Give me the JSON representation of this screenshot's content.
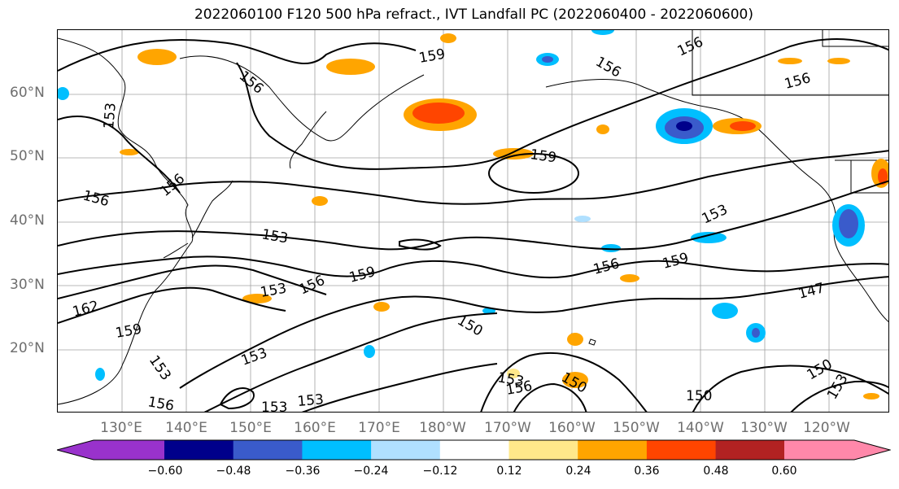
{
  "title": "2022060100 F120 500 hPa refract., IVT Landfall PC (2022060400 - 2022060600)",
  "lat_labels": [
    "60°N",
    "50°N",
    "40°N",
    "30°N",
    "20°N"
  ],
  "lon_labels": [
    "130°E",
    "140°E",
    "150°E",
    "160°E",
    "170°E",
    "180°W",
    "170°W",
    "160°W",
    "150°W",
    "140°W",
    "130°W",
    "120°W"
  ],
  "contour_labels": [
    "156",
    "159",
    "156",
    "156",
    "153",
    "156",
    "156",
    "159",
    "159",
    "153",
    "156",
    "153",
    "156",
    "159",
    "162",
    "159",
    "153",
    "153",
    "153",
    "156",
    "150",
    "153",
    "156",
    "150",
    "150",
    "153",
    "153",
    "150",
    "147",
    "156",
    "153"
  ],
  "colorbar": {
    "ticks": [
      "−0.60",
      "−0.48",
      "−0.36",
      "−0.24",
      "−0.12",
      "0.12",
      "0.24",
      "0.36",
      "0.48",
      "0.60"
    ],
    "colors": [
      "#9932cc",
      "#00008b",
      "#3a5bcb",
      "#00bfff",
      "#b0e0ff",
      "#ffffff",
      "#ffe88a",
      "#ffa500",
      "#ff4500",
      "#b22222",
      "#ff88aa"
    ]
  }
}
